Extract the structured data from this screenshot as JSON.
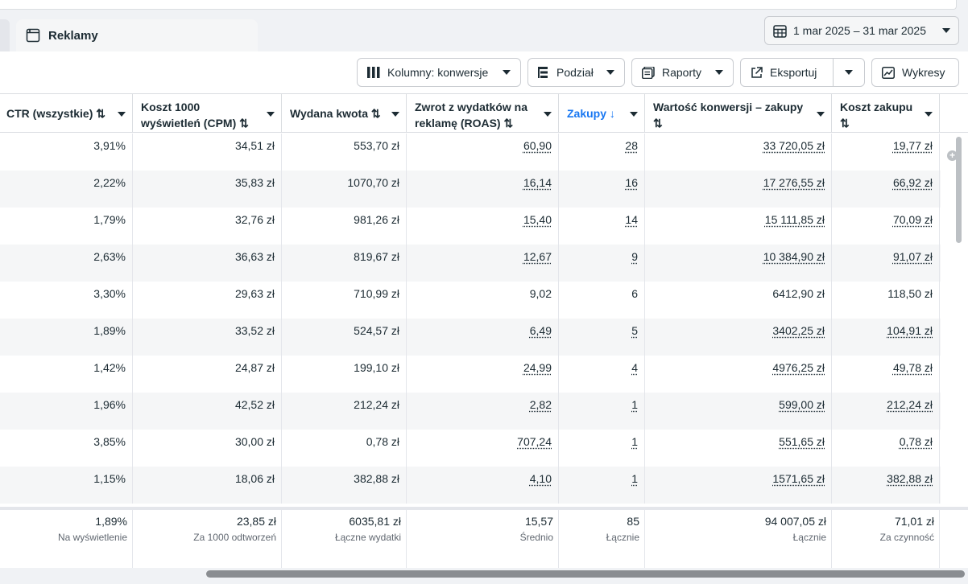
{
  "tab": {
    "label": "Reklamy"
  },
  "date_range": {
    "label": "1 mar 2025 – 31 mar 2025"
  },
  "toolbar": {
    "columns_label": "Kolumny: konwersje",
    "breakdown_label": "Podział",
    "reports_label": "Raporty",
    "export_label": "Eksportuj",
    "charts_label": "Wykresy"
  },
  "headers": {
    "ctr": "CTR (wszystkie) ⇅",
    "cpm_1": "Koszt 1000",
    "cpm_2": "wyświetleń (CPM) ⇅",
    "spend": "Wydana kwota ⇅",
    "roas_1": "Zwrot z wydatków na",
    "roas_2": "reklamę (ROAS) ⇅",
    "purchases": "Zakupy ↓",
    "conv_value_1": "Wartość konwersji – zakupy",
    "conv_value_2": "⇅",
    "cost_purchase_1": "Koszt zakupu",
    "cost_purchase_2": "⇅"
  },
  "rows": [
    {
      "ctr": "3,91%",
      "cpm": "34,51 zł",
      "spend": "553,70 zł",
      "roas": "60,90",
      "purchases": "28",
      "value": "33 720,05 zł",
      "cost": "19,77 zł"
    },
    {
      "ctr": "2,22%",
      "cpm": "35,83 zł",
      "spend": "1070,70 zł",
      "roas": "16,14",
      "purchases": "16",
      "value": "17 276,55 zł",
      "cost": "66,92 zł"
    },
    {
      "ctr": "1,79%",
      "cpm": "32,76 zł",
      "spend": "981,26 zł",
      "roas": "15,40",
      "purchases": "14",
      "value": "15 111,85 zł",
      "cost": "70,09 zł"
    },
    {
      "ctr": "2,63%",
      "cpm": "36,63 zł",
      "spend": "819,67 zł",
      "roas": "12,67",
      "purchases": "9",
      "value": "10 384,90 zł",
      "cost": "91,07 zł"
    },
    {
      "ctr": "3,30%",
      "cpm": "29,63 zł",
      "spend": "710,99 zł",
      "roas": "9,02",
      "purchases": "6",
      "value": "6412,90 zł",
      "cost": "118,50 zł"
    },
    {
      "ctr": "1,89%",
      "cpm": "33,52 zł",
      "spend": "524,57 zł",
      "roas": "6,49",
      "purchases": "5",
      "value": "3402,25 zł",
      "cost": "104,91 zł"
    },
    {
      "ctr": "1,42%",
      "cpm": "24,87 zł",
      "spend": "199,10 zł",
      "roas": "24,99",
      "purchases": "4",
      "value": "4976,25 zł",
      "cost": "49,78 zł"
    },
    {
      "ctr": "1,96%",
      "cpm": "42,52 zł",
      "spend": "212,24 zł",
      "roas": "2,82",
      "purchases": "1",
      "value": "599,00 zł",
      "cost": "212,24 zł"
    },
    {
      "ctr": "3,85%",
      "cpm": "30,00 zł",
      "spend": "0,78 zł",
      "roas": "707,24",
      "purchases": "1",
      "value": "551,65 zł",
      "cost": "0,78 zł"
    },
    {
      "ctr": "1,15%",
      "cpm": "18,06 zł",
      "spend": "382,88 zł",
      "roas": "4,10",
      "purchases": "1",
      "value": "1571,65 zł",
      "cost": "382,88 zł"
    }
  ],
  "totals": {
    "ctr": {
      "value": "1,89%",
      "label": "Na wyświetlenie"
    },
    "cpm": {
      "value": "23,85 zł",
      "label": "Za 1000 odtworzeń"
    },
    "spend": {
      "value": "6035,81 zł",
      "label": "Łączne wydatki"
    },
    "roas": {
      "value": "15,57",
      "label": "Średnio"
    },
    "purchases": {
      "value": "85",
      "label": "Łącznie"
    },
    "value": {
      "value": "94 007,05 zł",
      "label": "Łącznie"
    },
    "cost": {
      "value": "71,01 zł",
      "label": "Za czynność"
    }
  },
  "colors": {
    "accent": "#1877f2",
    "border": "#dadde1",
    "alt_row": "#f5f6f7"
  }
}
